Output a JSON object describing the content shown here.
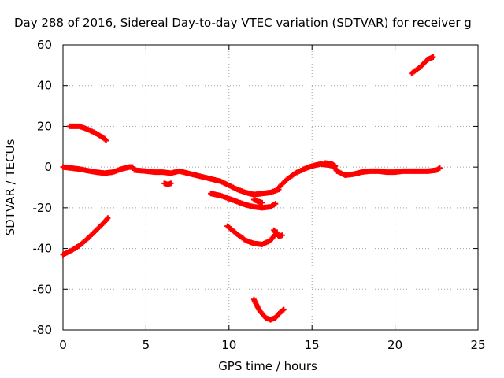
{
  "chart_data": {
    "type": "scatter",
    "title": "Day 288 of 2016, Sidereal Day-to-day VTEC variation (SDTVAR) for receiver g",
    "xlabel": "GPS time / hours",
    "ylabel": "SDTVAR / TECUs",
    "xlim": [
      0,
      25
    ],
    "ylim": [
      -80,
      60
    ],
    "x_ticks": [
      "0",
      "5",
      "10",
      "15",
      "20",
      "25"
    ],
    "y_ticks": [
      "60",
      "40",
      "20",
      "0",
      "-20",
      "-40",
      "-60",
      "-80"
    ],
    "grid": true,
    "marker_color": "#ff0000",
    "series": [
      {
        "points": [
          [
            0,
            0
          ],
          [
            0.5,
            -0.5
          ],
          [
            1,
            -1
          ],
          [
            1.5,
            -1.8
          ],
          [
            2,
            -2.5
          ],
          [
            2.5,
            -3
          ],
          [
            3,
            -2.5
          ],
          [
            3.5,
            -1
          ],
          [
            4,
            0
          ],
          [
            4.2,
            0
          ]
        ]
      },
      {
        "points": [
          [
            4.3,
            -1.5
          ],
          [
            5,
            -2
          ],
          [
            5.5,
            -2.5
          ],
          [
            6,
            -2.5
          ],
          [
            6.5,
            -3
          ],
          [
            7,
            -2
          ],
          [
            7.5,
            -3
          ],
          [
            8,
            -4
          ],
          [
            8.5,
            -5
          ],
          [
            9,
            -6
          ],
          [
            9.5,
            -7
          ],
          [
            10,
            -9
          ],
          [
            10.5,
            -11
          ],
          [
            11,
            -12.5
          ],
          [
            11.5,
            -13.5
          ],
          [
            12,
            -13
          ],
          [
            12.5,
            -12.5
          ],
          [
            13,
            -11
          ]
        ]
      },
      {
        "points": [
          [
            6.1,
            -8
          ],
          [
            6.3,
            -8.5
          ],
          [
            6.5,
            -8
          ]
        ]
      },
      {
        "points": [
          [
            0,
            -43
          ],
          [
            0.5,
            -41
          ],
          [
            1,
            -38.5
          ],
          [
            1.5,
            -35
          ],
          [
            2,
            -31
          ],
          [
            2.5,
            -27
          ],
          [
            2.7,
            -25
          ]
        ]
      },
      {
        "points": [
          [
            0.4,
            20
          ],
          [
            1,
            20
          ],
          [
            1.5,
            18.5
          ],
          [
            2,
            16.5
          ],
          [
            2.5,
            14
          ],
          [
            2.6,
            13
          ]
        ]
      },
      {
        "points": [
          [
            8.9,
            -13
          ],
          [
            9.5,
            -14
          ],
          [
            10,
            -15.5
          ],
          [
            10.5,
            -17
          ],
          [
            11,
            -18.5
          ],
          [
            11.5,
            -19.5
          ],
          [
            12,
            -20
          ],
          [
            12.5,
            -19.5
          ],
          [
            12.8,
            -18
          ]
        ]
      },
      {
        "points": [
          [
            11.5,
            -16
          ],
          [
            11.8,
            -17
          ],
          [
            12,
            -17.5
          ]
        ]
      },
      {
        "points": [
          [
            9.9,
            -29
          ],
          [
            10.5,
            -33
          ],
          [
            11,
            -36
          ],
          [
            11.5,
            -37.5
          ],
          [
            12,
            -38
          ],
          [
            12.5,
            -36
          ],
          [
            12.9,
            -32
          ]
        ]
      },
      {
        "points": [
          [
            12.7,
            -31
          ],
          [
            13,
            -34
          ],
          [
            13.2,
            -33.5
          ]
        ]
      },
      {
        "points": [
          [
            11.5,
            -65
          ],
          [
            11.8,
            -70
          ],
          [
            12.2,
            -74
          ],
          [
            12.5,
            -75
          ],
          [
            12.8,
            -74
          ],
          [
            13,
            -72
          ],
          [
            13.3,
            -70
          ]
        ]
      },
      {
        "points": [
          [
            13,
            -10
          ],
          [
            13.5,
            -6
          ],
          [
            14,
            -3
          ],
          [
            14.5,
            -1
          ],
          [
            15,
            0.5
          ],
          [
            15.5,
            1.5
          ],
          [
            16,
            1
          ],
          [
            16.3,
            0.5
          ],
          [
            16.5,
            -2
          ],
          [
            17,
            -4
          ],
          [
            17.5,
            -3.5
          ],
          [
            18,
            -2.5
          ],
          [
            18.5,
            -2
          ],
          [
            19,
            -2
          ],
          [
            19.5,
            -2.5
          ],
          [
            20,
            -2.5
          ],
          [
            20.5,
            -2
          ],
          [
            21,
            -2
          ],
          [
            21.5,
            -2
          ],
          [
            22,
            -2
          ],
          [
            22.5,
            -1.5
          ],
          [
            22.7,
            -0.5
          ]
        ]
      },
      {
        "points": [
          [
            15.8,
            2
          ],
          [
            16.2,
            1.5
          ],
          [
            16.4,
            0.5
          ]
        ]
      },
      {
        "points": [
          [
            21,
            46
          ],
          [
            21.5,
            49
          ],
          [
            22,
            53
          ],
          [
            22.3,
            54
          ]
        ]
      }
    ]
  }
}
